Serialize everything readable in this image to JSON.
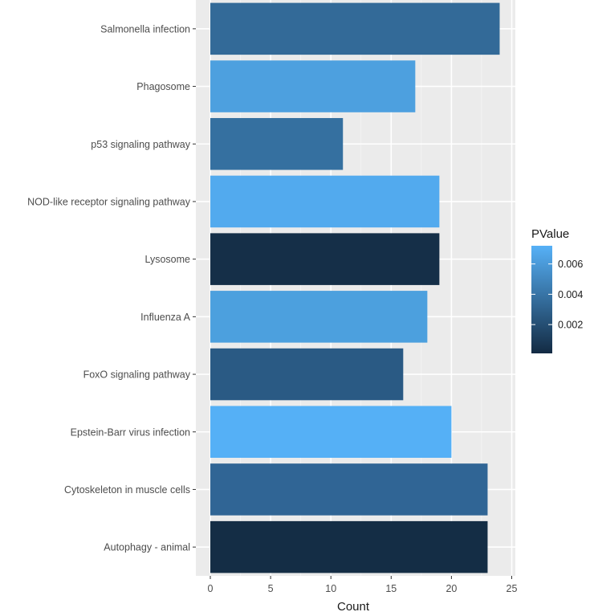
{
  "chart_data": {
    "type": "bar",
    "orientation": "horizontal",
    "title": "",
    "xlabel": "Count",
    "ylabel": "",
    "xlim": [
      -1.2,
      25.3
    ],
    "x_ticks": [
      0,
      5,
      10,
      15,
      20,
      25
    ],
    "grid": true,
    "legend_placement": "right",
    "legend": {
      "title": "PValue",
      "ticks": [
        0.006,
        0.004,
        0.002
      ],
      "range": [
        0.0001,
        0.0072
      ],
      "color_low": "#132B43",
      "color_high": "#56B1F7"
    },
    "categories": [
      "Salmonella infection",
      "Phagosome",
      "p53 signaling pathway",
      "NOD-like receptor signaling pathway",
      "Lysosome",
      "Influenza A",
      "FoxO signaling pathway",
      "Epstein-Barr virus infection",
      "Cytoskeleton in muscle cells",
      "Autophagy - animal"
    ],
    "values": [
      24,
      17,
      11,
      19,
      19,
      18,
      16,
      20,
      23,
      23
    ],
    "colors": [
      "#336A98",
      "#4DA0DF",
      "#3570A0",
      "#52AAEE",
      "#152F48",
      "#4CA0DE",
      "#2A5A84",
      "#55B0F6",
      "#306595",
      "#142D45"
    ]
  }
}
